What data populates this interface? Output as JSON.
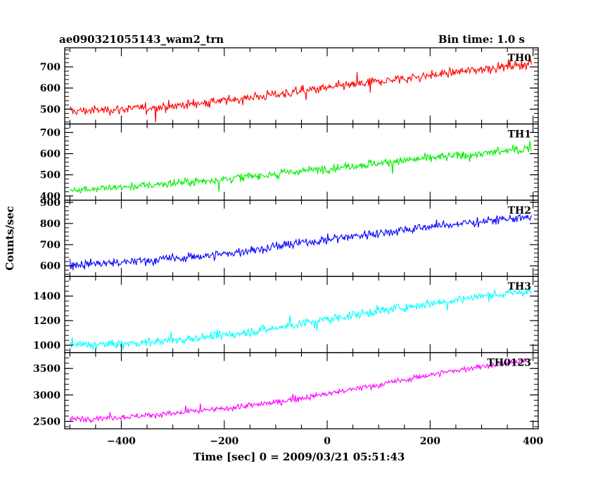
{
  "chart_data": {
    "type": "line",
    "title": "ae090321055143_wam2_trn",
    "subtitle": "Bin time: 1.0 s",
    "xlabel": "Time [sec] 0 = 2009/03/21 05:51:43",
    "ylabel": "Counts/sec",
    "xlim": [
      -510,
      410
    ],
    "x_ticks": [
      -400,
      -200,
      0,
      200,
      400
    ],
    "grid": false,
    "panels": [
      {
        "name": "TH0",
        "color": "#ff0000",
        "ylim": [
          430,
          790
        ],
        "y_ticks": [
          500,
          600,
          700
        ],
        "x": [
          -500,
          -400,
          -300,
          -200,
          -100,
          0,
          100,
          200,
          300,
          400
        ],
        "values": [
          490,
          500,
          515,
          540,
          570,
          600,
          630,
          660,
          690,
          715
        ],
        "noise": 28
      },
      {
        "name": "TH1",
        "color": "#00ee00",
        "ylim": [
          380,
          740
        ],
        "y_ticks": [
          400,
          500,
          600,
          700
        ],
        "x": [
          -500,
          -400,
          -300,
          -200,
          -100,
          0,
          100,
          200,
          300,
          400
        ],
        "values": [
          430,
          440,
          460,
          480,
          505,
          530,
          555,
          580,
          600,
          625
        ],
        "noise": 25
      },
      {
        "name": "TH2",
        "color": "#0000ff",
        "ylim": [
          550,
          910
        ],
        "y_ticks": [
          600,
          700,
          800,
          900
        ],
        "x": [
          -500,
          -400,
          -300,
          -200,
          -100,
          0,
          100,
          200,
          300,
          400
        ],
        "values": [
          605,
          615,
          635,
          655,
          690,
          725,
          755,
          785,
          810,
          830
        ],
        "noise": 28
      },
      {
        "name": "TH3",
        "color": "#00ffff",
        "ylim": [
          940,
          1560
        ],
        "y_ticks": [
          1000,
          1200,
          1400
        ],
        "x": [
          -500,
          -400,
          -300,
          -200,
          -100,
          0,
          100,
          200,
          300,
          400
        ],
        "values": [
          1000,
          1010,
          1040,
          1080,
          1140,
          1210,
          1280,
          1340,
          1400,
          1440
        ],
        "noise": 45
      },
      {
        "name": "TH0123",
        "color": "#ff00ff",
        "ylim": [
          2360,
          3800
        ],
        "y_ticks": [
          2500,
          3000,
          3500
        ],
        "x": [
          -500,
          -400,
          -300,
          -200,
          -100,
          0,
          100,
          200,
          300,
          400
        ],
        "values": [
          2540,
          2580,
          2650,
          2740,
          2860,
          3020,
          3190,
          3380,
          3540,
          3660
        ],
        "noise": 70
      }
    ]
  }
}
